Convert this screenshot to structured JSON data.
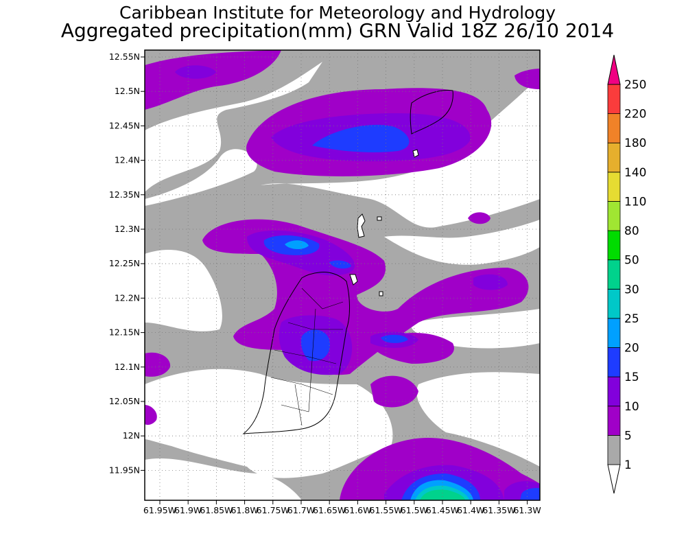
{
  "title_line1": "Caribbean Institute for Meteorology and Hydrology",
  "title_line2": "Aggregated precipitation(mm) GRN Valid 18Z 26/10 2014",
  "map": {
    "lat_labels": [
      "12.55N",
      "12.5N",
      "12.45N",
      "12.4N",
      "12.35N",
      "12.3N",
      "12.25N",
      "12.2N",
      "12.15N",
      "12.1N",
      "12.05N",
      "12N",
      "11.95N"
    ],
    "lon_labels": [
      "61.95W",
      "61.9W",
      "61.85W",
      "61.8W",
      "61.75W",
      "61.7W",
      "61.65W",
      "61.6W",
      "61.55W",
      "61.5W",
      "61.45W",
      "61.4W",
      "61.35W",
      "61.3W"
    ]
  },
  "colorbar": {
    "levels": [
      "1",
      "5",
      "10",
      "15",
      "20",
      "25",
      "30",
      "50",
      "80",
      "110",
      "140",
      "180",
      "220",
      "250"
    ],
    "colors": [
      "#a9a9a9",
      "#a000c8",
      "#8200dc",
      "#1e3cff",
      "#00a0ff",
      "#00c8c8",
      "#00d28c",
      "#00dc00",
      "#a0e632",
      "#e6dc32",
      "#e6af2d",
      "#f08228",
      "#fa3c3c",
      "#f00082"
    ]
  }
}
